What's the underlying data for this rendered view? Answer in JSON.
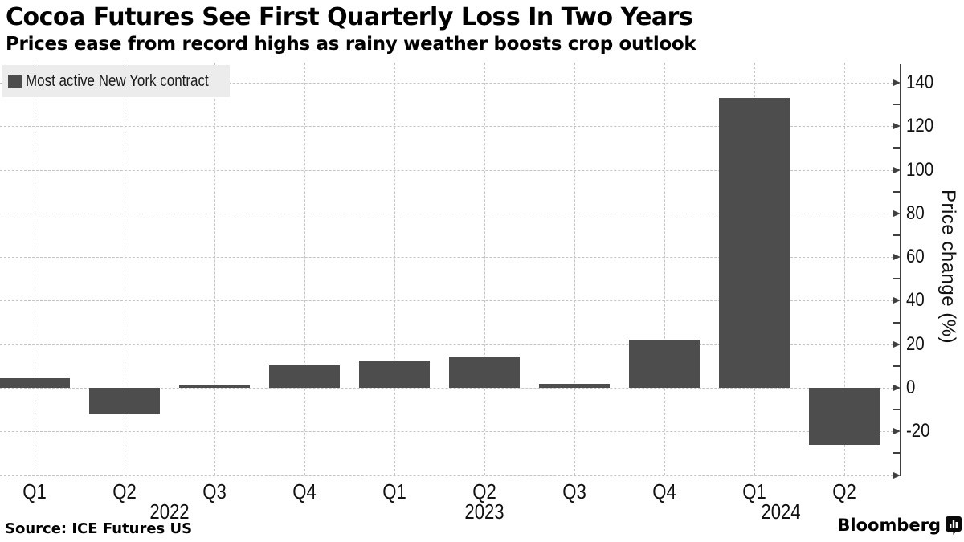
{
  "header": {
    "title": "Cocoa Futures See First Quarterly Loss In Two Years",
    "subtitle": "Prices ease from record highs as rainy weather boosts crop outlook"
  },
  "legend": {
    "label": "Most active New York contract",
    "marker_color": "#4d4d4d"
  },
  "footer": {
    "source": "Source: ICE Futures US",
    "brand": "Bloomberg"
  },
  "chart_data": {
    "type": "bar",
    "title": "Cocoa Futures See First Quarterly Loss In Two Years",
    "subtitle": "Prices ease from record highs as rainy weather boosts crop outlook",
    "categories": [
      "Q1",
      "Q2",
      "Q3",
      "Q4",
      "Q1",
      "Q2",
      "Q3",
      "Q4",
      "Q1",
      "Q2"
    ],
    "series": [
      {
        "name": "Most active New York contract",
        "values": [
          4.5,
          -12,
          1,
          10.5,
          12.5,
          14,
          2,
          22,
          133,
          -26
        ]
      }
    ],
    "year_labels": [
      {
        "text": "2022",
        "x": 211
      },
      {
        "text": "2023",
        "x": 603
      },
      {
        "text": "2024",
        "x": 972
      }
    ],
    "xlabel": "",
    "ylabel": "Price change (%)",
    "y_ticks": [
      140,
      120,
      100,
      80,
      60,
      40,
      20,
      0,
      -20
    ],
    "y_minor_ticks": [
      -30,
      -10,
      10,
      30,
      50,
      70,
      90,
      110,
      130
    ],
    "ylim": [
      -40,
      149
    ],
    "bar_color": "#4d4d4d",
    "grid": "dashed",
    "legend_position": "top-left",
    "axis_side": "right"
  }
}
